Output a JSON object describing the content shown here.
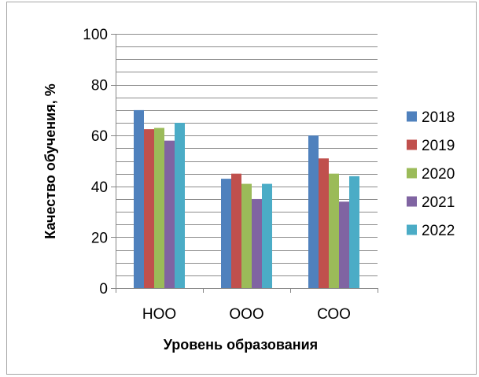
{
  "chart_data": {
    "type": "bar",
    "title": "",
    "xlabel": "Уровень образования",
    "ylabel": "Качество обучения, %",
    "categories": [
      "НОО",
      "ООО",
      "СОО"
    ],
    "ylim": [
      0,
      100
    ],
    "yticks": [
      0,
      20,
      40,
      60,
      80,
      100
    ],
    "minor_grid_step": 5,
    "grid": true,
    "legend_position": "right",
    "series": [
      {
        "name": "2018",
        "color": "#4f81bd",
        "values": [
          70,
          43,
          60
        ]
      },
      {
        "name": "2019",
        "color": "#c0504d",
        "values": [
          62.5,
          45,
          51
        ]
      },
      {
        "name": "2020",
        "color": "#9bbb59",
        "values": [
          63,
          41,
          45
        ]
      },
      {
        "name": "2021",
        "color": "#8064a2",
        "values": [
          58,
          35,
          34
        ]
      },
      {
        "name": "2022",
        "color": "#4bacc6",
        "values": [
          65,
          41,
          44
        ]
      }
    ]
  }
}
